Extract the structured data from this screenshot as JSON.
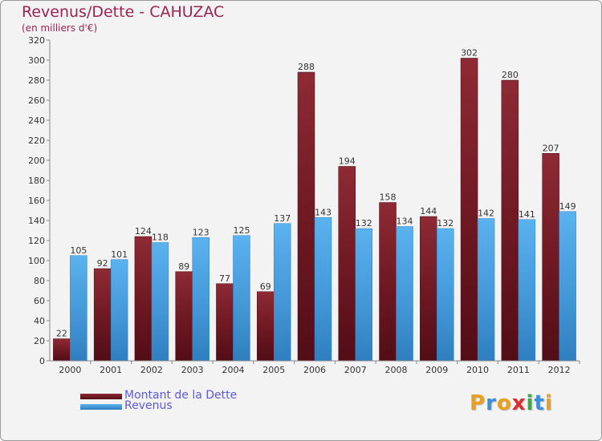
{
  "chart_data": {
    "type": "bar",
    "title": "Revenus/Dette - CAHUZAC",
    "subtitle": "(en milliers d'€)",
    "categories": [
      "2000",
      "2001",
      "2002",
      "2003",
      "2004",
      "2005",
      "2006",
      "2007",
      "2008",
      "2009",
      "2010",
      "2011",
      "2012"
    ],
    "series": [
      {
        "name": "Montant de la Dette",
        "color": "#7a1e28",
        "values": [
          22,
          92,
          124,
          89,
          77,
          69,
          288,
          194,
          158,
          144,
          302,
          280,
          207
        ]
      },
      {
        "name": "Revenus",
        "color": "#4a9fe0",
        "values": [
          105,
          101,
          118,
          123,
          125,
          137,
          143,
          132,
          134,
          132,
          142,
          141,
          149
        ]
      }
    ],
    "ylim": [
      0,
      320
    ],
    "ytick_step": 20,
    "grid": false,
    "legend_position": "bottom-left"
  },
  "logo": {
    "letters": [
      {
        "ch": "P",
        "color": "#e8a020"
      },
      {
        "ch": "r",
        "color": "#3a8fd8"
      },
      {
        "ch": "o",
        "color": "#e8a020"
      },
      {
        "ch": "x",
        "color": "#d83030"
      },
      {
        "ch": "i",
        "color": "#3aa84a"
      },
      {
        "ch": "t",
        "color": "#3a8fd8"
      },
      {
        "ch": "i",
        "color": "#e8a020"
      }
    ]
  }
}
